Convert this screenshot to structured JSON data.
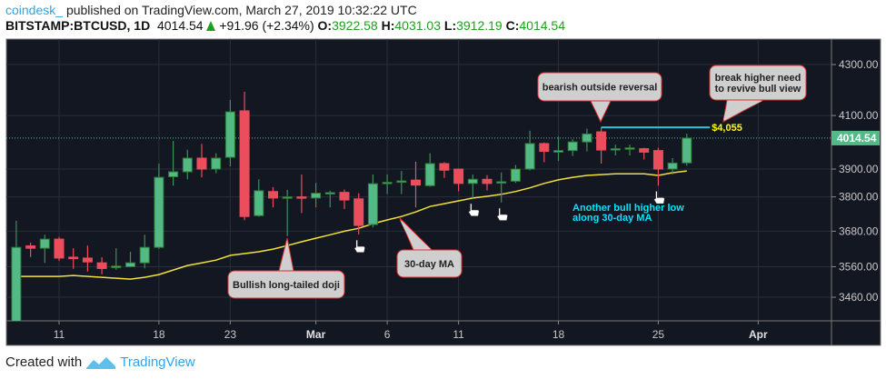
{
  "header": {
    "user": "coindesk_",
    "published": "published on TradingView.com, March 27, 2019 10:32:22 UTC",
    "symbol": "BITSTAMP:BTCUSD, 1D",
    "last": "4014.54",
    "change": "+91.96 (+2.34%)",
    "o_label": "O:",
    "o": "3922.58",
    "h_label": "H:",
    "h": "4031.03",
    "l_label": "L:",
    "l": "3912.19",
    "c_label": "C:",
    "c": "4014.54"
  },
  "footer": {
    "created": "Created with",
    "brand": "TradingView"
  },
  "chart_data": {
    "type": "candlestick",
    "yscale": "log",
    "ylim": [
      3380,
      4400
    ],
    "xlim": [
      "2019-02-07",
      "2019-04-07"
    ],
    "grid": true,
    "colors": {
      "up": "#53b987",
      "down": "#eb4d5c",
      "ma": "#f2e13a",
      "background": "#131722",
      "level": "#26c6da",
      "level_label": "#ffff00",
      "note": "#00e5ff"
    },
    "y_ticks": [
      "4300.00",
      "4100.00",
      "3900.00",
      "3800.00",
      "3680.00",
      "3560.00",
      "3460.00"
    ],
    "x_ticks": [
      {
        "date": "2019-02-11",
        "label": "11"
      },
      {
        "date": "2019-02-18",
        "label": "18"
      },
      {
        "date": "2019-02-23",
        "label": "23"
      },
      {
        "date": "2019-03-01",
        "label": "Mar"
      },
      {
        "date": "2019-03-06",
        "label": "6"
      },
      {
        "date": "2019-03-11",
        "label": "11"
      },
      {
        "date": "2019-03-18",
        "label": "18"
      },
      {
        "date": "2019-03-25",
        "label": "25"
      },
      {
        "date": "2019-04-01",
        "label": "Apr"
      }
    ],
    "last_price_label": "4014.54",
    "candles_columns": [
      "date",
      "open",
      "high",
      "low",
      "close"
    ],
    "candles": [
      [
        "2019-02-08",
        3380,
        3716,
        3375,
        3625
      ],
      [
        "2019-02-09",
        3630,
        3641,
        3592,
        3622
      ],
      [
        "2019-02-10",
        3622,
        3668,
        3573,
        3653
      ],
      [
        "2019-02-11",
        3653,
        3660,
        3580,
        3589
      ],
      [
        "2019-02-12",
        3592,
        3622,
        3553,
        3587
      ],
      [
        "2019-02-13",
        3589,
        3631,
        3544,
        3576
      ],
      [
        "2019-02-14",
        3573,
        3592,
        3535,
        3554
      ],
      [
        "2019-02-15",
        3557,
        3622,
        3550,
        3562
      ],
      [
        "2019-02-16",
        3560,
        3610,
        3558,
        3573
      ],
      [
        "2019-02-17",
        3573,
        3668,
        3555,
        3625
      ],
      [
        "2019-02-18",
        3625,
        3920,
        3620,
        3870
      ],
      [
        "2019-02-19",
        3872,
        4004,
        3840,
        3890
      ],
      [
        "2019-02-20",
        3890,
        3971,
        3863,
        3940
      ],
      [
        "2019-02-21",
        3940,
        3993,
        3870,
        3900
      ],
      [
        "2019-02-22",
        3900,
        3958,
        3885,
        3940
      ],
      [
        "2019-02-23",
        3943,
        4160,
        3910,
        4114
      ],
      [
        "2019-02-24",
        4118,
        4192,
        3718,
        3731
      ],
      [
        "2019-02-25",
        3734,
        3863,
        3730,
        3822
      ],
      [
        "2019-02-26",
        3819,
        3835,
        3763,
        3796
      ],
      [
        "2019-02-27",
        3796,
        3825,
        3663,
        3800
      ],
      [
        "2019-02-28",
        3800,
        3880,
        3743,
        3796
      ],
      [
        "2019-03-01",
        3796,
        3850,
        3763,
        3813
      ],
      [
        "2019-03-02",
        3810,
        3822,
        3763,
        3815
      ],
      [
        "2019-03-03",
        3816,
        3826,
        3757,
        3789
      ],
      [
        "2019-03-04",
        3793,
        3813,
        3669,
        3700
      ],
      [
        "2019-03-05",
        3703,
        3880,
        3693,
        3847
      ],
      [
        "2019-03-06",
        3848,
        3880,
        3810,
        3852
      ],
      [
        "2019-03-07",
        3852,
        3893,
        3810,
        3857
      ],
      [
        "2019-03-08",
        3860,
        3927,
        3763,
        3842
      ],
      [
        "2019-03-09",
        3840,
        3958,
        3836,
        3920
      ],
      [
        "2019-03-10",
        3920,
        3925,
        3868,
        3896
      ],
      [
        "2019-03-11",
        3900,
        3902,
        3820,
        3848
      ],
      [
        "2019-03-12",
        3848,
        3880,
        3796,
        3863
      ],
      [
        "2019-03-13",
        3863,
        3878,
        3823,
        3848
      ],
      [
        "2019-03-14",
        3850,
        3888,
        3780,
        3854
      ],
      [
        "2019-03-15",
        3856,
        3915,
        3850,
        3900
      ],
      [
        "2019-03-16",
        3900,
        4042,
        3895,
        3994
      ],
      [
        "2019-03-17",
        3994,
        3998,
        3925,
        3965
      ],
      [
        "2019-03-18",
        3962,
        4020,
        3930,
        3968
      ],
      [
        "2019-03-19",
        3968,
        4010,
        3948,
        4000
      ],
      [
        "2019-03-20",
        4000,
        4050,
        3965,
        4030
      ],
      [
        "2019-03-21",
        4038,
        4055,
        3920,
        3970
      ],
      [
        "2019-03-22",
        3970,
        3990,
        3950,
        3975
      ],
      [
        "2019-03-23",
        3975,
        3990,
        3950,
        3978
      ],
      [
        "2019-03-24",
        3975,
        3978,
        3935,
        3962
      ],
      [
        "2019-03-25",
        3968,
        3978,
        3840,
        3900
      ],
      [
        "2019-03-26",
        3900,
        3940,
        3880,
        3922
      ],
      [
        "2019-03-27",
        3922.58,
        4031.03,
        3912.19,
        4014.54
      ]
    ],
    "ma30": [
      3528,
      3528,
      3528,
      3528,
      3531,
      3528,
      3525,
      3522,
      3519,
      3525,
      3534,
      3549,
      3564,
      3573,
      3582,
      3598,
      3604,
      3610,
      3619,
      3631,
      3644,
      3656,
      3668,
      3680,
      3690,
      3706,
      3719,
      3731,
      3747,
      3766,
      3776,
      3786,
      3796,
      3802,
      3809,
      3819,
      3832,
      3848,
      3861,
      3870,
      3877,
      3880,
      3883,
      3883,
      3883,
      3877,
      3887,
      3893
    ],
    "level": {
      "value": 4055,
      "from": "2019-03-21",
      "to": "2019-03-29",
      "label": "$4,055"
    },
    "annotations": [
      {
        "text": "bearish outside reversal",
        "date": "2019-03-21",
        "price": 4055
      },
      {
        "text": "break higher need to revive bull view",
        "date": "2019-03-29",
        "price": 4055
      },
      {
        "text": "Bullish long-tailed doji",
        "date": "2019-02-27",
        "price": 3663
      },
      {
        "text": "30-day MA",
        "date": "2019-03-07",
        "price": 3731
      }
    ],
    "note": [
      "Another bull higher low",
      "along 30-day MA"
    ],
    "markers": [
      {
        "icon": "pointing-hand-icon",
        "date": "2019-03-04"
      },
      {
        "icon": "pointing-hand-icon",
        "date": "2019-03-12"
      },
      {
        "icon": "pointing-hand-icon",
        "date": "2019-03-14"
      },
      {
        "icon": "pointing-hand-icon",
        "date": "2019-03-25"
      }
    ]
  }
}
